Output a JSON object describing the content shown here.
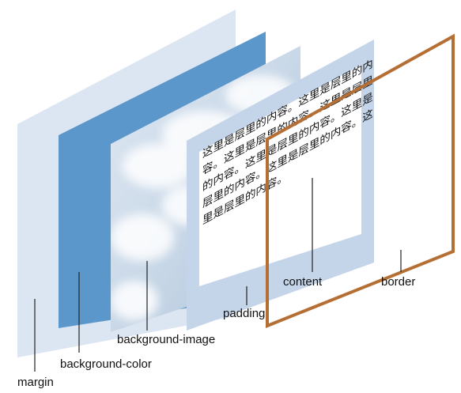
{
  "diagram": {
    "layers": [
      {
        "id": "margin",
        "label": "margin",
        "fill": "#dce6f2"
      },
      {
        "id": "background-color",
        "label": "background-color",
        "fill": "#5b97cb"
      },
      {
        "id": "background-image",
        "label": "background-image",
        "fill": "#e8eef5"
      },
      {
        "id": "padding",
        "label": "padding",
        "fill": "#c4d5e9"
      },
      {
        "id": "content",
        "label": "content",
        "fill": "#ffffff"
      },
      {
        "id": "border",
        "label": "border",
        "stroke": "#b56f35"
      }
    ],
    "content_lines": [
      "这里是层里的内容。这里是层里的内",
      "容。这里是层里的内容。这里是层里",
      "的内容。这里是层里的内容。这里是",
      "层里的内容。这里是层里的内容。这",
      "里是层里的内容。"
    ]
  }
}
